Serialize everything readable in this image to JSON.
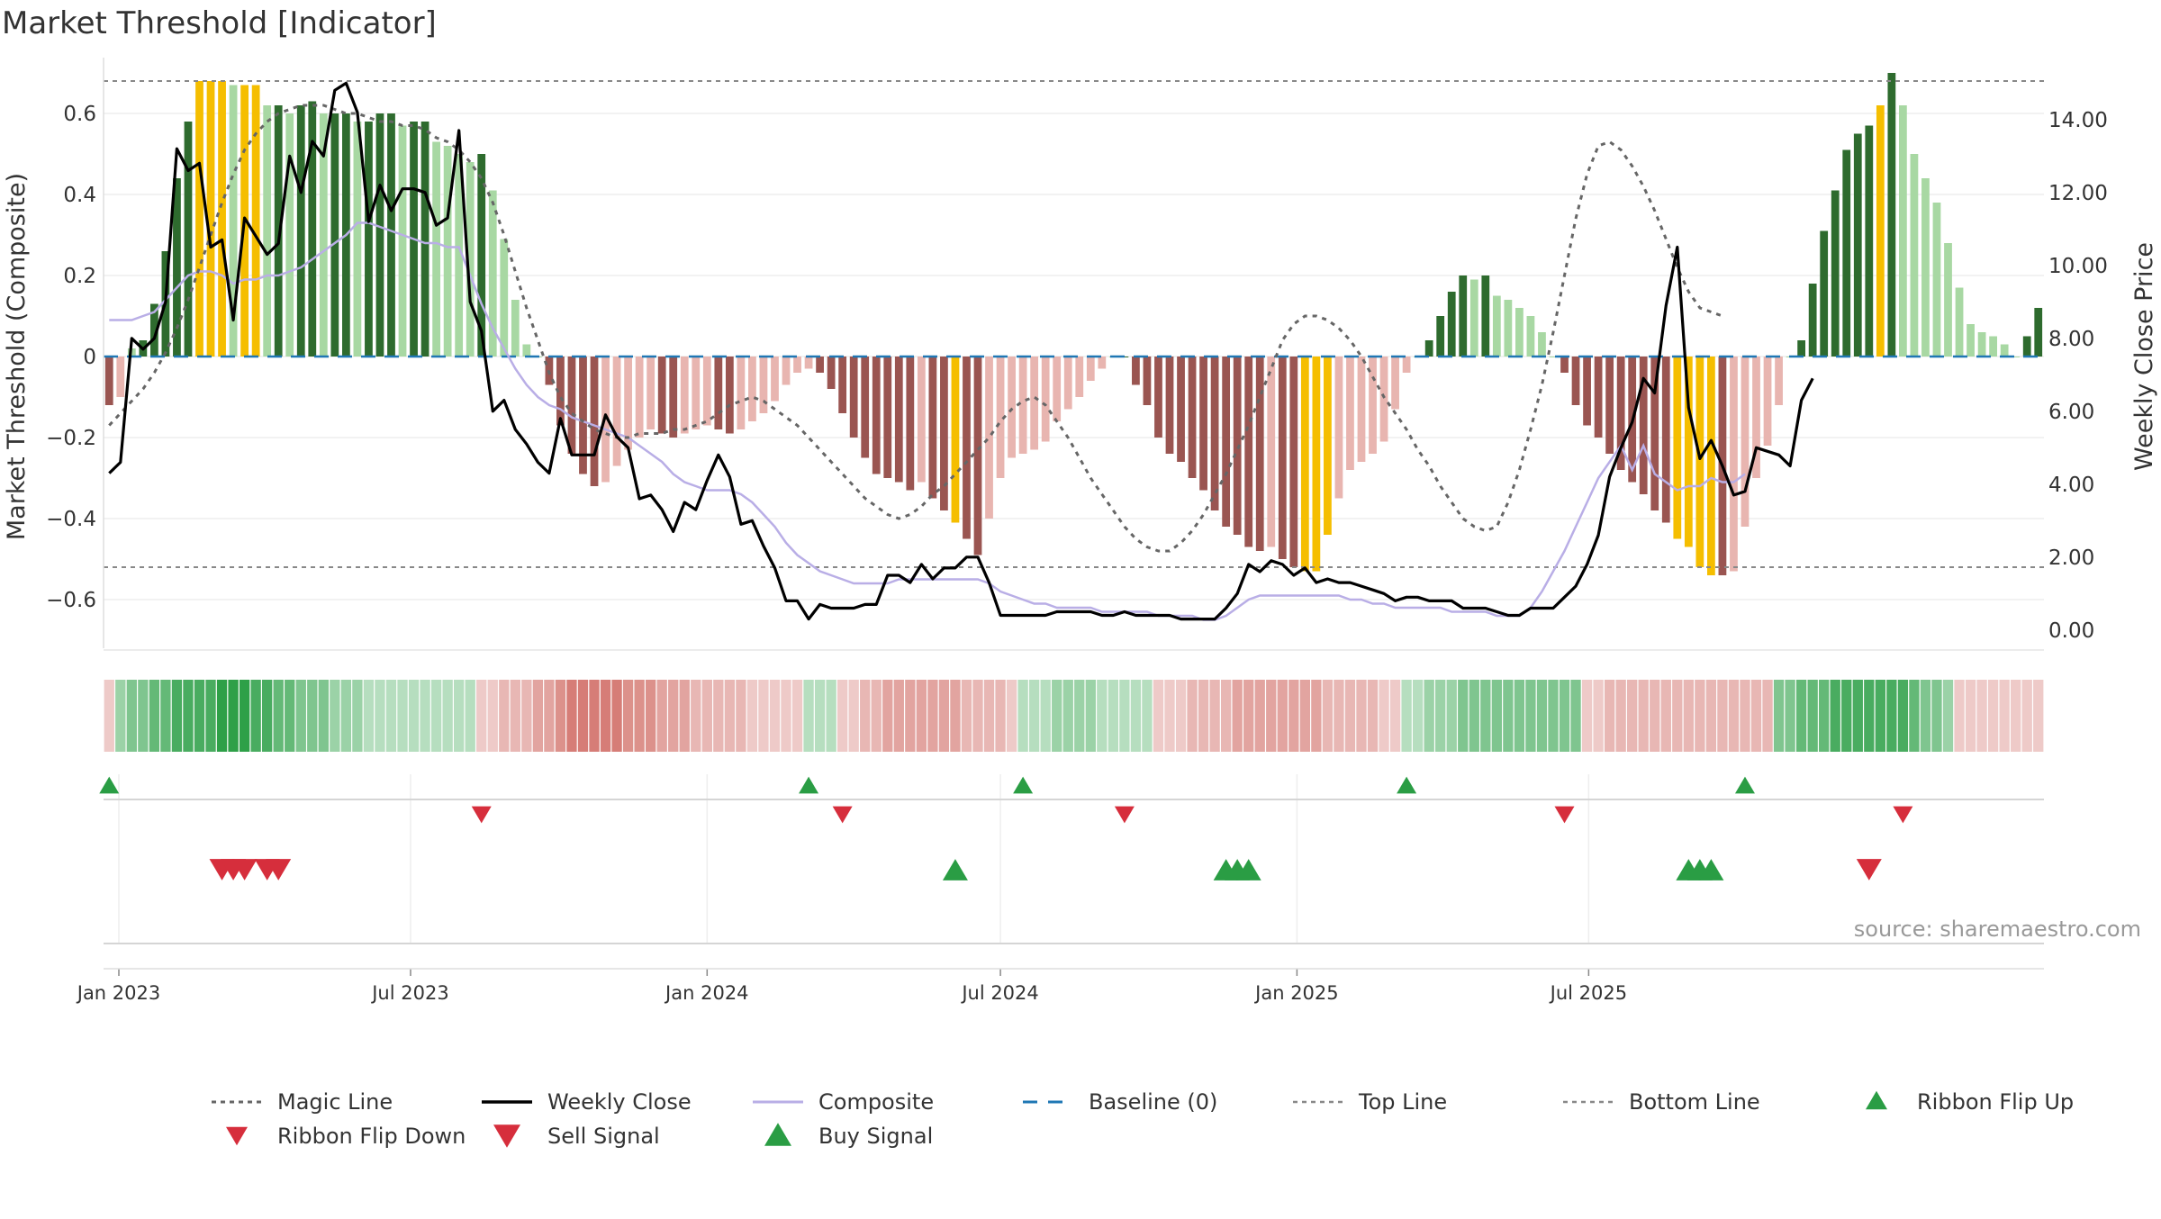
{
  "title": "Market Threshold [Indicator]",
  "source": "source: sharemaestro.com",
  "colors": {
    "bull_strong": "#2e6b2e",
    "bull_light": "#a8d8a3",
    "bear_strong": "#9a5551",
    "bear_light": "#e8b5b0",
    "extreme": "#f5be00",
    "magic": "#666666",
    "close": "#000000",
    "composite": "#b9aee6",
    "baseline": "#1f77b4",
    "refline": "#888888",
    "buy": "#2a9d44",
    "sell": "#d62e3c"
  },
  "chart_data": {
    "type": "bar",
    "x_start": "2022-12-26",
    "x_step_days": 7,
    "y_left": {
      "label": "Market Threshold (Composite)",
      "ylim": [
        -0.72,
        0.72
      ],
      "ticks": [
        -0.6,
        -0.4,
        -0.2,
        0,
        0.2,
        0.4,
        0.6
      ],
      "tick_labels": [
        "−0.6",
        "−0.4",
        "−0.2",
        "0",
        "0.2",
        "0.4",
        "0.6"
      ]
    },
    "y_right": {
      "label": "Weekly Close Price",
      "ylim": [
        -0.5,
        15.5
      ],
      "ticks": [
        0,
        2,
        4,
        6,
        8,
        10,
        12,
        14
      ],
      "tick_labels": [
        "0.00",
        "2.00",
        "4.00",
        "6.00",
        "8.00",
        "10.00",
        "12.00",
        "14.00"
      ]
    },
    "x_ticks": [
      {
        "date": "2023-01-01",
        "label": "Jan 2023"
      },
      {
        "date": "2023-07-01",
        "label": "Jul 2023"
      },
      {
        "date": "2024-01-01",
        "label": "Jan 2024"
      },
      {
        "date": "2024-07-01",
        "label": "Jul 2024"
      },
      {
        "date": "2025-01-01",
        "label": "Jan 2025"
      },
      {
        "date": "2025-07-01",
        "label": "Jul 2025"
      }
    ],
    "top_line": 0.68,
    "bottom_line": -0.52,
    "histogram": {
      "name": "Market Threshold",
      "values": [
        -0.12,
        -0.1,
        0.02,
        0.04,
        0.13,
        0.26,
        0.44,
        0.58,
        0.68,
        0.68,
        0.68,
        0.67,
        0.67,
        0.67,
        0.62,
        0.62,
        0.6,
        0.62,
        0.63,
        0.6,
        0.6,
        0.6,
        0.58,
        0.58,
        0.6,
        0.6,
        0.57,
        0.58,
        0.58,
        0.53,
        0.52,
        0.5,
        0.48,
        0.5,
        0.41,
        0.29,
        0.14,
        0.03,
        0.0,
        -0.07,
        -0.17,
        -0.24,
        -0.29,
        -0.32,
        -0.31,
        -0.27,
        -0.23,
        -0.2,
        -0.18,
        -0.19,
        -0.2,
        -0.19,
        -0.18,
        -0.17,
        -0.18,
        -0.19,
        -0.18,
        -0.16,
        -0.14,
        -0.11,
        -0.07,
        -0.04,
        -0.03,
        -0.04,
        -0.08,
        -0.14,
        -0.2,
        -0.25,
        -0.29,
        -0.3,
        -0.31,
        -0.33,
        -0.31,
        -0.35,
        -0.38,
        -0.41,
        -0.45,
        -0.49,
        -0.4,
        -0.3,
        -0.25,
        -0.24,
        -0.23,
        -0.21,
        -0.16,
        -0.13,
        -0.1,
        -0.06,
        -0.03,
        0.0,
        0.0,
        -0.07,
        -0.12,
        -0.2,
        -0.24,
        -0.26,
        -0.3,
        -0.33,
        -0.38,
        -0.42,
        -0.44,
        -0.47,
        -0.48,
        -0.47,
        -0.5,
        -0.52,
        -0.53,
        -0.53,
        -0.44,
        -0.35,
        -0.28,
        -0.26,
        -0.24,
        -0.21,
        -0.13,
        -0.04,
        0.0,
        0.04,
        0.1,
        0.16,
        0.2,
        0.19,
        0.2,
        0.15,
        0.14,
        0.12,
        0.1,
        0.06,
        0.0,
        -0.04,
        -0.12,
        -0.17,
        -0.2,
        -0.24,
        -0.28,
        -0.31,
        -0.34,
        -0.38,
        -0.41,
        -0.45,
        -0.47,
        -0.52,
        -0.54,
        -0.54,
        -0.53,
        -0.42,
        -0.3,
        -0.22,
        -0.12,
        0.0,
        0.04,
        0.18,
        0.31,
        0.41,
        0.51,
        0.55,
        0.57,
        0.62,
        0.7,
        0.62,
        0.5,
        0.44,
        0.38,
        0.28,
        0.17,
        0.08,
        0.06,
        0.05,
        0.03,
        0.0,
        0.05,
        0.12
      ],
      "extremes": [
        8,
        9,
        10,
        12,
        13,
        75,
        106,
        107,
        108,
        139,
        140,
        141,
        142,
        157
      ]
    },
    "series": [
      {
        "name": "Weekly Close",
        "axis": "right",
        "values": [
          4.3,
          4.6,
          8.0,
          7.7,
          8.0,
          9.0,
          13.2,
          12.6,
          12.8,
          10.5,
          10.7,
          8.5,
          11.3,
          10.8,
          10.3,
          10.6,
          13.0,
          12.0,
          13.4,
          13.0,
          14.8,
          15.0,
          14.2,
          11.2,
          12.2,
          11.5,
          12.1,
          12.1,
          12.0,
          11.1,
          11.3,
          13.7,
          9.0,
          8.2,
          6.0,
          6.3,
          5.5,
          5.1,
          4.6,
          4.3,
          5.8,
          4.8,
          4.8,
          4.8,
          5.9,
          5.3,
          5.0,
          3.6,
          3.7,
          3.3,
          2.7,
          3.5,
          3.3,
          4.1,
          4.8,
          4.2,
          2.9,
          3.0,
          2.3,
          1.7,
          0.8,
          0.8,
          0.3,
          0.7,
          0.6,
          0.6,
          0.6,
          0.7,
          0.7,
          1.5,
          1.5,
          1.3,
          1.8,
          1.4,
          1.7,
          1.7,
          2.0,
          2.0,
          1.3,
          0.4,
          0.4,
          0.4,
          0.4,
          0.4,
          0.5,
          0.5,
          0.5,
          0.5,
          0.4,
          0.4,
          0.5,
          0.4,
          0.4,
          0.4,
          0.4,
          0.3,
          0.3,
          0.3,
          0.3,
          0.6,
          1.0,
          1.8,
          1.6,
          1.9,
          1.8,
          1.5,
          1.7,
          1.3,
          1.4,
          1.3,
          1.3,
          1.2,
          1.1,
          1.0,
          0.8,
          0.9,
          0.9,
          0.8,
          0.8,
          0.8,
          0.6,
          0.6,
          0.6,
          0.5,
          0.4,
          0.4,
          0.6,
          0.6,
          0.6,
          0.9,
          1.2,
          1.8,
          2.6,
          4.2,
          5.0,
          5.7,
          6.9,
          6.5,
          8.9,
          10.5,
          6.1,
          4.7,
          5.2,
          4.5,
          3.7,
          3.8,
          5.0,
          4.9,
          4.8,
          4.5,
          6.3,
          6.9
        ]
      },
      {
        "name": "Composite",
        "axis": "left",
        "values": [
          0.09,
          0.09,
          0.09,
          0.1,
          0.11,
          0.14,
          0.17,
          0.2,
          0.21,
          0.21,
          0.2,
          0.18,
          0.19,
          0.19,
          0.2,
          0.2,
          0.21,
          0.22,
          0.24,
          0.26,
          0.28,
          0.3,
          0.33,
          0.33,
          0.32,
          0.31,
          0.3,
          0.29,
          0.28,
          0.28,
          0.27,
          0.27,
          0.2,
          0.13,
          0.07,
          0.02,
          -0.03,
          -0.07,
          -0.1,
          -0.12,
          -0.13,
          -0.15,
          -0.16,
          -0.17,
          -0.18,
          -0.19,
          -0.2,
          -0.22,
          -0.24,
          -0.26,
          -0.29,
          -0.31,
          -0.32,
          -0.33,
          -0.33,
          -0.33,
          -0.34,
          -0.36,
          -0.39,
          -0.42,
          -0.46,
          -0.49,
          -0.51,
          -0.53,
          -0.54,
          -0.55,
          -0.56,
          -0.56,
          -0.56,
          -0.56,
          -0.55,
          -0.55,
          -0.55,
          -0.55,
          -0.55,
          -0.55,
          -0.55,
          -0.55,
          -0.56,
          -0.58,
          -0.59,
          -0.6,
          -0.61,
          -0.61,
          -0.62,
          -0.62,
          -0.62,
          -0.62,
          -0.63,
          -0.63,
          -0.63,
          -0.63,
          -0.63,
          -0.64,
          -0.64,
          -0.64,
          -0.64,
          -0.65,
          -0.65,
          -0.64,
          -0.62,
          -0.6,
          -0.59,
          -0.59,
          -0.59,
          -0.59,
          -0.59,
          -0.59,
          -0.59,
          -0.59,
          -0.6,
          -0.6,
          -0.61,
          -0.61,
          -0.62,
          -0.62,
          -0.62,
          -0.62,
          -0.62,
          -0.63,
          -0.63,
          -0.63,
          -0.63,
          -0.64,
          -0.64,
          -0.64,
          -0.62,
          -0.58,
          -0.53,
          -0.48,
          -0.42,
          -0.36,
          -0.3,
          -0.26,
          -0.22,
          -0.28,
          -0.22,
          -0.29,
          -0.31,
          -0.33,
          -0.32,
          -0.32,
          -0.3,
          -0.31,
          -0.31,
          -0.29
        ]
      },
      {
        "name": "Magic Line",
        "axis": "left",
        "values": [
          -0.17,
          -0.14,
          -0.11,
          -0.08,
          -0.04,
          0.01,
          0.07,
          0.14,
          0.22,
          0.3,
          0.38,
          0.45,
          0.51,
          0.55,
          0.58,
          0.6,
          0.61,
          0.62,
          0.62,
          0.62,
          0.61,
          0.6,
          0.6,
          0.59,
          0.58,
          0.58,
          0.57,
          0.57,
          0.56,
          0.54,
          0.53,
          0.51,
          0.48,
          0.44,
          0.38,
          0.3,
          0.21,
          0.12,
          0.04,
          -0.04,
          -0.1,
          -0.14,
          -0.16,
          -0.18,
          -0.19,
          -0.2,
          -0.2,
          -0.19,
          -0.19,
          -0.19,
          -0.18,
          -0.18,
          -0.17,
          -0.16,
          -0.14,
          -0.12,
          -0.11,
          -0.1,
          -0.11,
          -0.13,
          -0.15,
          -0.17,
          -0.2,
          -0.23,
          -0.26,
          -0.29,
          -0.32,
          -0.35,
          -0.37,
          -0.39,
          -0.4,
          -0.39,
          -0.37,
          -0.34,
          -0.32,
          -0.29,
          -0.26,
          -0.23,
          -0.2,
          -0.16,
          -0.13,
          -0.11,
          -0.1,
          -0.12,
          -0.16,
          -0.2,
          -0.25,
          -0.3,
          -0.34,
          -0.38,
          -0.42,
          -0.45,
          -0.47,
          -0.48,
          -0.48,
          -0.46,
          -0.43,
          -0.39,
          -0.34,
          -0.29,
          -0.23,
          -0.17,
          -0.1,
          -0.03,
          0.04,
          0.08,
          0.1,
          0.1,
          0.09,
          0.07,
          0.04,
          0.0,
          -0.05,
          -0.1,
          -0.14,
          -0.18,
          -0.23,
          -0.27,
          -0.32,
          -0.36,
          -0.4,
          -0.42,
          -0.43,
          -0.42,
          -0.36,
          -0.28,
          -0.18,
          -0.07,
          0.06,
          0.2,
          0.34,
          0.45,
          0.52,
          0.53,
          0.51,
          0.47,
          0.42,
          0.36,
          0.29,
          0.22,
          0.16,
          0.12,
          0.11,
          0.1
        ]
      }
    ],
    "ribbon": {
      "values": [
        -1,
        2,
        3,
        3,
        4,
        4,
        5,
        5,
        5,
        5,
        6,
        6,
        6,
        5,
        5,
        4,
        4,
        3,
        3,
        3,
        2,
        2,
        2,
        1,
        1,
        1,
        1,
        1,
        1,
        1,
        1,
        1,
        1,
        -1,
        -1,
        -2,
        -2,
        -2,
        -3,
        -3,
        -4,
        -5,
        -5,
        -5,
        -5,
        -5,
        -4,
        -4,
        -4,
        -3,
        -3,
        -3,
        -2,
        -2,
        -2,
        -2,
        -2,
        -1,
        -1,
        -1,
        -1,
        -1,
        1,
        1,
        1,
        -1,
        -1,
        -2,
        -2,
        -3,
        -3,
        -3,
        -3,
        -3,
        -3,
        -3,
        -2,
        -2,
        -2,
        -2,
        -1,
        1,
        1,
        1,
        2,
        2,
        2,
        2,
        1,
        1,
        1,
        1,
        1,
        -1,
        -1,
        -1,
        -2,
        -2,
        -2,
        -2,
        -3,
        -3,
        -3,
        -3,
        -3,
        -3,
        -3,
        -3,
        -2,
        -2,
        -2,
        -2,
        -2,
        -1,
        -1,
        1,
        1,
        2,
        2,
        2,
        3,
        3,
        3,
        3,
        3,
        3,
        3,
        3,
        3,
        3,
        3,
        -1,
        -1,
        -2,
        -2,
        -2,
        -2,
        -2,
        -2,
        -2,
        -2,
        -2,
        -2,
        -2,
        -2,
        -2,
        -2,
        -2,
        3,
        3,
        4,
        4,
        4,
        5,
        5,
        5,
        5,
        5,
        5,
        5,
        4,
        3,
        3,
        2,
        -1,
        -1,
        -1,
        -1,
        -1,
        -1,
        -1,
        -1
      ]
    },
    "ribbon_flip_up": [
      0,
      62,
      81,
      115,
      145
    ],
    "ribbon_flip_down": [
      33,
      65,
      90,
      129,
      159
    ],
    "sell_signals": [
      10,
      11,
      12,
      14,
      15,
      156
    ],
    "buy_signals": [
      75,
      99,
      100,
      101,
      140,
      141,
      142
    ]
  },
  "legend": [
    {
      "label": "Magic Line",
      "key": "magic"
    },
    {
      "label": "Weekly Close",
      "key": "close"
    },
    {
      "label": "Composite",
      "key": "composite"
    },
    {
      "label": "Baseline (0)",
      "key": "baseline"
    },
    {
      "label": "Top Line",
      "key": "top"
    },
    {
      "label": "Bottom Line",
      "key": "bottom"
    },
    {
      "label": "Ribbon Flip Up",
      "key": "flipup"
    },
    {
      "label": "Ribbon Flip Down",
      "key": "flipdown"
    },
    {
      "label": "Sell Signal",
      "key": "sell"
    },
    {
      "label": "Buy Signal",
      "key": "buy"
    }
  ]
}
